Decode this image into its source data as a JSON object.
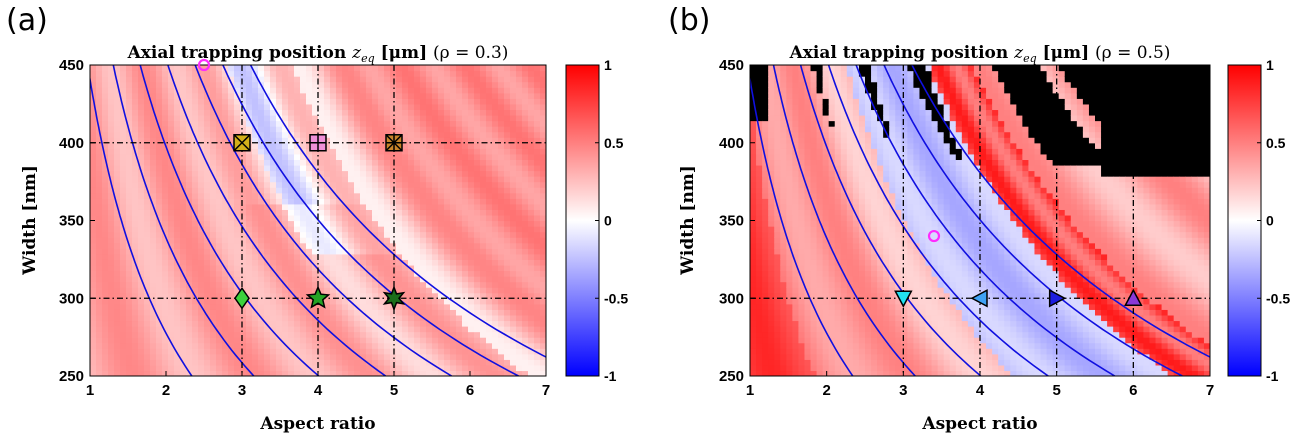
{
  "chart_data": [
    {
      "type": "heatmap",
      "panel_label": "(a)",
      "title": "Axial trapping position z_eq [μm] (ρ = 0.3)",
      "title_main": "Axial trapping position ",
      "title_var": "z",
      "title_sub": "eq",
      "title_unit": " [μm] ",
      "title_param": "(ρ = 0.3)",
      "xlabel": "Aspect ratio",
      "ylabel": "Width [nm]",
      "xlim": [
        1,
        7
      ],
      "ylim": [
        250,
        450
      ],
      "xticks": [
        "1",
        "2",
        "3",
        "4",
        "5",
        "6",
        "7"
      ],
      "yticks": [
        "250",
        "300",
        "350",
        "400",
        "450"
      ],
      "colorbar": {
        "min": -1,
        "max": 1,
        "ticks": [
          "1",
          "0.5",
          "0",
          "-0.5",
          "-1"
        ],
        "colormap": "blue-white-red"
      },
      "rho": 0.3,
      "dashed_lines": {
        "x": [
          3,
          4,
          5
        ],
        "y": [
          300,
          400
        ]
      },
      "contour_constants": [
        1.78,
        2.4,
        3.05,
        3.72,
        4.38,
        5.05,
        5.72
      ],
      "markers": [
        {
          "x": 3,
          "y": 400,
          "shape": "square-x",
          "color": "#d4b11a"
        },
        {
          "x": 4,
          "y": 400,
          "shape": "square-plus",
          "color": "#f090d8"
        },
        {
          "x": 5,
          "y": 400,
          "shape": "square-star",
          "color": "#c8842a"
        },
        {
          "x": 3,
          "y": 300,
          "shape": "diamond",
          "color": "#3cd23c"
        },
        {
          "x": 4,
          "y": 300,
          "shape": "star",
          "color": "#25a225"
        },
        {
          "x": 5,
          "y": 300,
          "shape": "hexagram",
          "color": "#1b6e1b"
        },
        {
          "x": 2.5,
          "y": 450,
          "shape": "circle",
          "color": "#ff2bff"
        }
      ]
    },
    {
      "type": "heatmap",
      "panel_label": "(b)",
      "title": "Axial trapping position z_eq [μm] (ρ = 0.5)",
      "title_main": "Axial trapping position ",
      "title_var": "z",
      "title_sub": "eq",
      "title_unit": " [μm] ",
      "title_param": "(ρ = 0.5)",
      "xlabel": "Aspect ratio",
      "ylabel": "Width [nm]",
      "xlim": [
        1,
        7
      ],
      "ylim": [
        250,
        450
      ],
      "xticks": [
        "1",
        "2",
        "3",
        "4",
        "5",
        "6",
        "7"
      ],
      "yticks": [
        "250",
        "300",
        "350",
        "400",
        "450"
      ],
      "colorbar": {
        "min": -1,
        "max": 1,
        "ticks": [
          "1",
          "0.5",
          "0",
          "-0.5",
          "-1"
        ],
        "colormap": "blue-white-red"
      },
      "rho": 0.5,
      "black_regions": "no equilibrium (black)",
      "dashed_lines": {
        "x": [
          3,
          4,
          5,
          6
        ],
        "y": [
          300
        ]
      },
      "contour_constants": [
        1.78,
        2.4,
        3.05,
        3.72,
        4.38,
        5.05,
        5.72
      ],
      "markers": [
        {
          "x": 3,
          "y": 300,
          "shape": "triangle-down",
          "color": "#22e0f0"
        },
        {
          "x": 4,
          "y": 300,
          "shape": "triangle-left",
          "color": "#3fa2f5"
        },
        {
          "x": 5,
          "y": 300,
          "shape": "triangle-right",
          "color": "#1c1ce0"
        },
        {
          "x": 6,
          "y": 300,
          "shape": "triangle-up",
          "color": "#8a38d8"
        },
        {
          "x": 3.4,
          "y": 340,
          "shape": "circle",
          "color": "#ff2bff"
        }
      ]
    }
  ]
}
